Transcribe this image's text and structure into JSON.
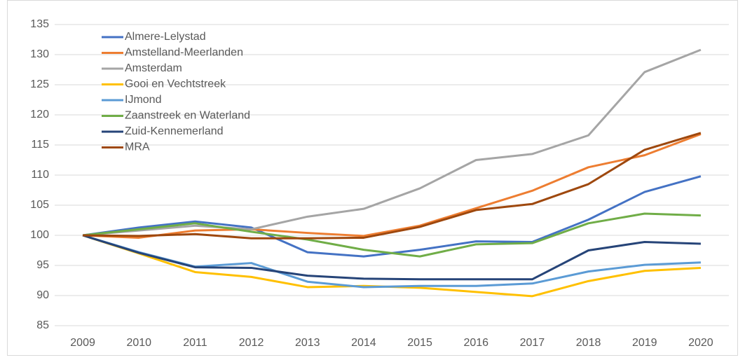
{
  "chart_data": {
    "type": "line",
    "x": [
      "2009",
      "2010",
      "2011",
      "2012",
      "2013",
      "2014",
      "2015",
      "2016",
      "2017",
      "2018",
      "2019",
      "2020"
    ],
    "series": [
      {
        "name": "Almere-Lelystad",
        "color": "#4472c4",
        "values": [
          100,
          101.3,
          102.3,
          101.3,
          97.2,
          96.5,
          97.6,
          99,
          98.9,
          102.6,
          107.2,
          109.8
        ]
      },
      {
        "name": "Amstelland-Meerlanden",
        "color": "#ed7d31",
        "values": [
          100,
          99.6,
          100.8,
          101,
          100.4,
          99.9,
          101.6,
          104.5,
          107.4,
          111.3,
          113.3,
          116.8
        ]
      },
      {
        "name": "Amsterdam",
        "color": "#a5a5a5",
        "values": [
          100,
          100.8,
          101.6,
          101,
          103.1,
          104.4,
          107.8,
          112.5,
          113.5,
          116.6,
          127.1,
          130.8
        ]
      },
      {
        "name": "Gooi en Vechtstreek",
        "color": "#ffc000",
        "values": [
          100,
          97,
          93.9,
          93.1,
          91.4,
          91.6,
          91.3,
          90.6,
          89.9,
          92.4,
          94.1,
          94.6
        ]
      },
      {
        "name": "IJmond",
        "color": "#5b9bd5",
        "values": [
          100,
          97.2,
          94.8,
          95.4,
          92.3,
          91.4,
          91.6,
          91.6,
          92,
          94,
          95.1,
          95.5
        ]
      },
      {
        "name": "Zaanstreek en Waterland",
        "color": "#70ad47",
        "values": [
          100,
          101,
          102,
          100.6,
          99.3,
          97.6,
          96.5,
          98.5,
          98.7,
          102,
          103.6,
          103.3
        ]
      },
      {
        "name": "Zuid-Kennemerland",
        "color": "#264478",
        "values": [
          100,
          97.1,
          94.7,
          94.6,
          93.3,
          92.8,
          92.7,
          92.7,
          92.7,
          97.5,
          98.9,
          98.6
        ]
      },
      {
        "name": "MRA",
        "color": "#9e480e",
        "values": [
          100,
          99.9,
          100.2,
          99.5,
          99.5,
          99.6,
          101.4,
          104.2,
          105.2,
          108.5,
          114.2,
          117
        ]
      }
    ],
    "ylim": [
      85,
      135
    ],
    "yticks": [
      85,
      90,
      95,
      100,
      105,
      110,
      115,
      120,
      125,
      130,
      135
    ],
    "grid": true,
    "legend": "top-left"
  }
}
